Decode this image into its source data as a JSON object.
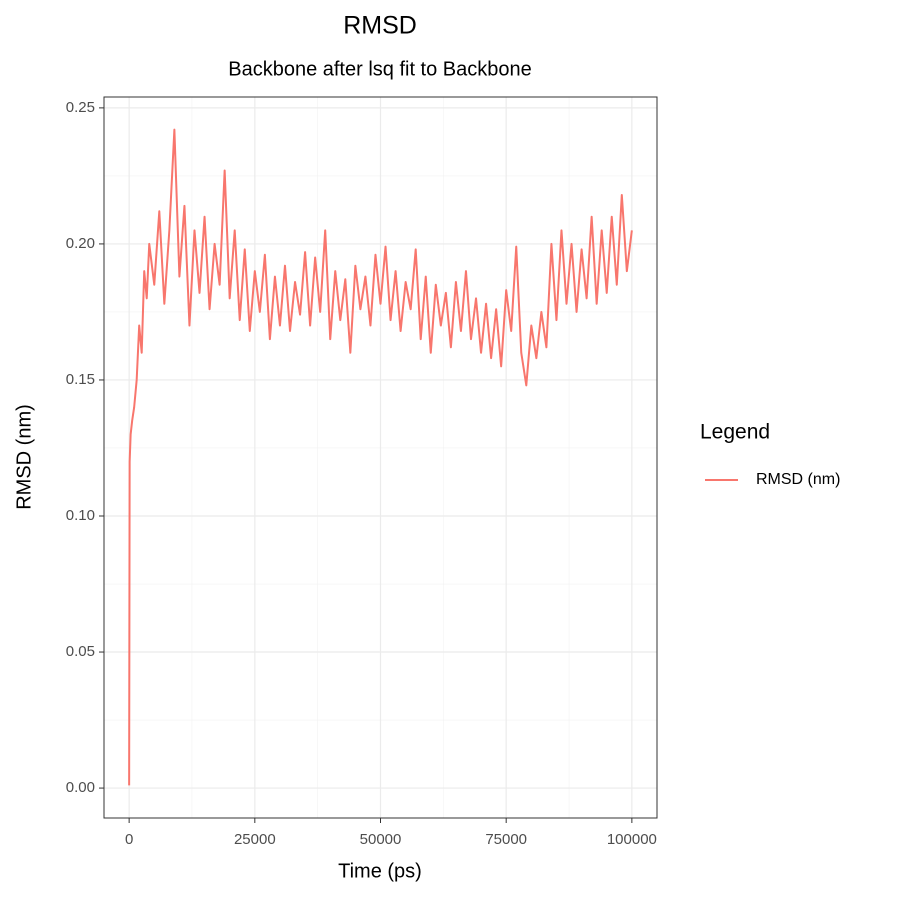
{
  "chart_data": {
    "type": "line",
    "title": "RMSD",
    "subtitle": "Backbone after lsq fit to Backbone",
    "x_label": "Time (ps)",
    "y_label": "RMSD (nm)",
    "legend_title": "Legend",
    "legend": "right",
    "grid": true,
    "xlim": [
      -5000,
      105000
    ],
    "xticks": [
      0,
      25000,
      50000,
      75000,
      100000
    ],
    "xminor": [
      12500,
      37500,
      62500,
      87500
    ],
    "ylim": [
      -0.011,
      0.254
    ],
    "yticks": [
      {
        "value": 0,
        "label": "0.00"
      },
      0.05,
      {
        "value": 0.1,
        "label": "0.10"
      },
      0.15,
      {
        "value": 0.2,
        "label": "0.20"
      },
      0.25
    ],
    "yminor": [
      0.025,
      0.075,
      0.125,
      0.175,
      0.225
    ],
    "x": [
      0,
      100,
      300,
      600,
      1000,
      1500,
      2000,
      2500,
      3000,
      3500,
      4000,
      5000,
      6000,
      7000,
      8000,
      9000,
      10000,
      11000,
      12000,
      13000,
      14000,
      15000,
      16000,
      17000,
      18000,
      19000,
      20000,
      21000,
      22000,
      23000,
      24000,
      25000,
      26000,
      27000,
      28000,
      29000,
      30000,
      31000,
      32000,
      33000,
      34000,
      35000,
      36000,
      37000,
      38000,
      39000,
      40000,
      41000,
      42000,
      43000,
      44000,
      45000,
      46000,
      47000,
      48000,
      49000,
      50000,
      51000,
      52000,
      53000,
      54000,
      55000,
      56000,
      57000,
      58000,
      59000,
      60000,
      61000,
      62000,
      63000,
      64000,
      65000,
      66000,
      67000,
      68000,
      69000,
      70000,
      71000,
      72000,
      73000,
      74000,
      75000,
      76000,
      77000,
      78000,
      79000,
      80000,
      81000,
      82000,
      83000,
      84000,
      85000,
      86000,
      87000,
      88000,
      89000,
      90000,
      91000,
      92000,
      93000,
      94000,
      95000,
      96000,
      97000,
      98000,
      99000,
      100000
    ],
    "series": [
      {
        "name": "RMSD (nm)",
        "color": "#f8766d",
        "values": [
          0.001,
          0.12,
          0.13,
          0.135,
          0.14,
          0.15,
          0.17,
          0.16,
          0.19,
          0.18,
          0.2,
          0.185,
          0.212,
          0.178,
          0.205,
          0.242,
          0.188,
          0.214,
          0.17,
          0.205,
          0.182,
          0.21,
          0.176,
          0.2,
          0.185,
          0.227,
          0.18,
          0.205,
          0.172,
          0.198,
          0.168,
          0.19,
          0.175,
          0.196,
          0.165,
          0.188,
          0.17,
          0.192,
          0.168,
          0.186,
          0.174,
          0.197,
          0.17,
          0.195,
          0.175,
          0.205,
          0.165,
          0.19,
          0.172,
          0.187,
          0.16,
          0.192,
          0.176,
          0.188,
          0.17,
          0.196,
          0.178,
          0.199,
          0.172,
          0.19,
          0.168,
          0.186,
          0.176,
          0.198,
          0.165,
          0.188,
          0.16,
          0.185,
          0.17,
          0.182,
          0.162,
          0.186,
          0.168,
          0.19,
          0.165,
          0.18,
          0.16,
          0.178,
          0.158,
          0.176,
          0.155,
          0.183,
          0.168,
          0.199,
          0.16,
          0.148,
          0.17,
          0.158,
          0.175,
          0.162,
          0.2,
          0.172,
          0.205,
          0.178,
          0.2,
          0.175,
          0.198,
          0.18,
          0.21,
          0.178,
          0.205,
          0.182,
          0.21,
          0.185,
          0.218,
          0.19,
          0.205
        ]
      }
    ]
  }
}
